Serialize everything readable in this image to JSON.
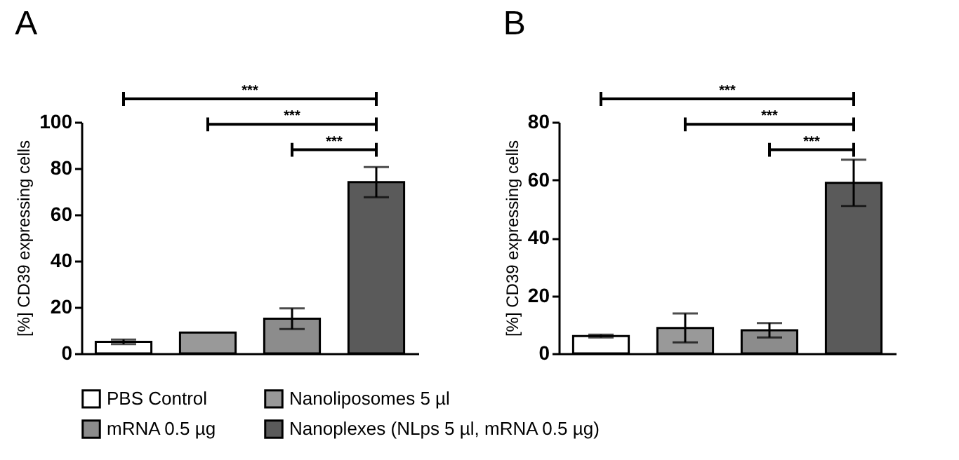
{
  "chart_data": [
    {
      "type": "bar",
      "title": "A",
      "ylabel": "[%] CD39 expressing cells",
      "categories": [
        null,
        null,
        null,
        null
      ],
      "ylim": [
        0,
        100
      ],
      "yticks": [
        0,
        20,
        40,
        60,
        80,
        100
      ],
      "grid": false,
      "legend": "bottom",
      "tick_labels": "y",
      "annotations": [
        "***",
        "***",
        "***"
      ],
      "series": [
        {
          "name": "PBS Control",
          "color": "#ffffff",
          "values": [
            5,
            null,
            null,
            null
          ],
          "errors": [
            1,
            null,
            null,
            null
          ]
        },
        {
          "name": "Nanoliposomes 5 µl",
          "color": "#999999",
          "values": [
            null,
            9,
            null,
            null
          ],
          "errors": [
            null,
            null,
            null,
            null
          ]
        },
        {
          "name": "mRNA 0.5 µg",
          "color": "#8c8c8c",
          "values": [
            null,
            null,
            15,
            null
          ],
          "errors": [
            null,
            null,
            4.5,
            null
          ]
        },
        {
          "name": "Nanoplexes (NLps 5 µl, mRNA 0.5 µg)",
          "color": "#5a5a5a",
          "values": [
            null,
            null,
            null,
            74
          ],
          "errors": [
            null,
            null,
            null,
            6.5
          ]
        }
      ]
    },
    {
      "type": "bar",
      "title": "B",
      "ylabel": "[%] CD39 expressing cells",
      "categories": [
        null,
        null,
        null,
        null
      ],
      "ylim": [
        0,
        80
      ],
      "yticks": [
        0,
        20,
        40,
        60,
        80
      ],
      "grid": false,
      "legend": "bottom",
      "tick_labels": "y",
      "annotations": [
        "***",
        "***",
        "***"
      ],
      "series": [
        {
          "name": "PBS Control",
          "color": "#ffffff",
          "values": [
            6,
            null,
            null,
            null
          ],
          "errors": [
            0.5,
            null,
            null,
            null
          ]
        },
        {
          "name": "Nanoliposomes 5 µl",
          "color": "#999999",
          "values": [
            null,
            8.8,
            null,
            null
          ],
          "errors": [
            null,
            5,
            null,
            null
          ]
        },
        {
          "name": "mRNA 0.5 µg",
          "color": "#8c8c8c",
          "values": [
            null,
            null,
            8,
            null
          ],
          "errors": [
            null,
            null,
            2.5,
            null
          ]
        },
        {
          "name": "Nanoplexes (NLps 5 µl, mRNA 0.5 µg)",
          "color": "#5a5a5a",
          "values": [
            null,
            null,
            null,
            59
          ],
          "errors": [
            null,
            null,
            null,
            8
          ]
        }
      ]
    }
  ]
}
